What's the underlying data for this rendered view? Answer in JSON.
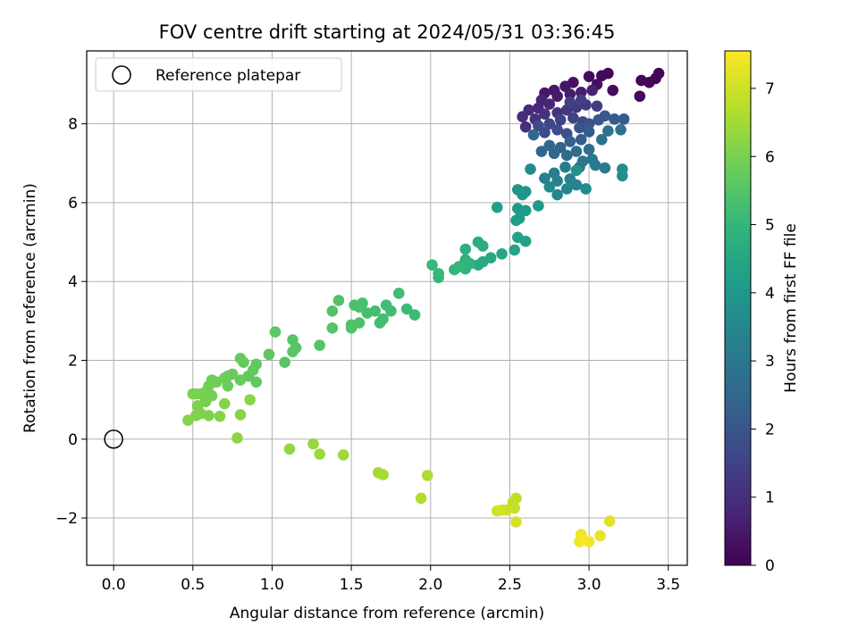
{
  "chart_data": {
    "type": "scatter",
    "title": "FOV centre drift starting at 2024/05/31 03:36:45",
    "xlabel": "Angular distance from reference (arcmin)",
    "ylabel": "Rotation from reference (arcmin)",
    "xlim": [
      -0.17,
      3.62
    ],
    "ylim": [
      -3.2,
      9.85
    ],
    "xticks": [
      0.0,
      0.5,
      1.0,
      1.5,
      2.0,
      2.5,
      3.0,
      3.5
    ],
    "xtick_labels": [
      "0.0",
      "0.5",
      "1.0",
      "1.5",
      "2.0",
      "2.5",
      "3.0",
      "3.5"
    ],
    "yticks": [
      -2,
      0,
      2,
      4,
      6,
      8
    ],
    "ytick_labels": [
      "−2",
      "0",
      "2",
      "4",
      "6",
      "8"
    ],
    "grid": true,
    "legend": {
      "placement": "upper-left",
      "entries": [
        "Reference platepar"
      ]
    },
    "reference_point": {
      "x": 0.0,
      "y": 0.0,
      "label": "Reference platepar"
    },
    "colorbar": {
      "label": "Hours from first FF file",
      "colormap": "viridis",
      "range": [
        0,
        7.55
      ],
      "ticks": [
        0,
        1,
        2,
        3,
        4,
        5,
        6,
        7
      ],
      "tick_labels": [
        "0",
        "1",
        "2",
        "3",
        "4",
        "5",
        "6",
        "7"
      ]
    },
    "points": [
      [
        3.44,
        9.28,
        0.05
      ],
      [
        3.42,
        9.15,
        0.08
      ],
      [
        3.38,
        9.05,
        0.1
      ],
      [
        3.33,
        9.1,
        0.12
      ],
      [
        3.32,
        8.7,
        0.15
      ],
      [
        3.12,
        9.28,
        0.12
      ],
      [
        3.08,
        9.22,
        0.18
      ],
      [
        3.0,
        9.2,
        0.2
      ],
      [
        3.15,
        8.85,
        0.25
      ],
      [
        3.05,
        9.0,
        0.3
      ],
      [
        2.9,
        9.05,
        0.35
      ],
      [
        2.85,
        8.95,
        0.4
      ],
      [
        2.78,
        8.85,
        0.45
      ],
      [
        2.72,
        8.78,
        0.5
      ],
      [
        2.8,
        8.7,
        0.55
      ],
      [
        2.88,
        8.75,
        0.6
      ],
      [
        2.95,
        8.8,
        0.65
      ],
      [
        3.02,
        8.85,
        0.7
      ],
      [
        2.7,
        8.6,
        0.75
      ],
      [
        2.75,
        8.5,
        0.8
      ],
      [
        2.68,
        8.4,
        0.85
      ],
      [
        2.62,
        8.35,
        0.9
      ],
      [
        2.58,
        8.18,
        0.95
      ],
      [
        2.6,
        7.92,
        1.0
      ],
      [
        2.66,
        8.12,
        1.05
      ],
      [
        2.72,
        8.25,
        1.1
      ],
      [
        2.8,
        8.28,
        1.15
      ],
      [
        2.86,
        8.35,
        1.2
      ],
      [
        2.92,
        8.42,
        1.25
      ],
      [
        2.98,
        8.48,
        1.3
      ],
      [
        3.05,
        8.45,
        1.35
      ],
      [
        2.95,
        8.6,
        1.4
      ],
      [
        2.88,
        8.55,
        1.45
      ],
      [
        2.82,
        8.1,
        1.5
      ],
      [
        2.9,
        8.15,
        1.55
      ],
      [
        2.96,
        8.05,
        1.6
      ],
      [
        2.75,
        8.0,
        1.65
      ],
      [
        2.68,
        7.95,
        1.7
      ],
      [
        2.72,
        7.78,
        1.75
      ],
      [
        2.8,
        7.85,
        1.8
      ],
      [
        2.86,
        7.75,
        1.85
      ],
      [
        2.94,
        7.9,
        1.9
      ],
      [
        3.0,
        8.0,
        1.95
      ],
      [
        3.06,
        8.1,
        2.0
      ],
      [
        3.1,
        8.2,
        2.05
      ],
      [
        3.16,
        8.12,
        2.1
      ],
      [
        3.22,
        8.12,
        2.15
      ],
      [
        3.0,
        7.8,
        2.2
      ],
      [
        2.95,
        7.6,
        2.25
      ],
      [
        2.88,
        7.55,
        2.3
      ],
      [
        2.82,
        7.4,
        2.35
      ],
      [
        2.75,
        7.45,
        2.4
      ],
      [
        2.7,
        7.3,
        2.45
      ],
      [
        2.65,
        7.72,
        2.5
      ],
      [
        2.78,
        7.25,
        2.55
      ],
      [
        2.86,
        7.2,
        2.6
      ],
      [
        2.92,
        7.3,
        2.65
      ],
      [
        3.0,
        7.35,
        2.7
      ],
      [
        3.08,
        7.6,
        2.75
      ],
      [
        3.12,
        7.82,
        2.8
      ],
      [
        3.2,
        7.85,
        2.85
      ],
      [
        2.96,
        7.05,
        2.9
      ],
      [
        3.02,
        7.1,
        2.95
      ],
      [
        2.94,
        6.9,
        3.0
      ],
      [
        3.04,
        6.95,
        3.05
      ],
      [
        3.1,
        6.88,
        3.1
      ],
      [
        2.85,
        6.9,
        3.15
      ],
      [
        2.78,
        6.75,
        3.2
      ],
      [
        2.72,
        6.62,
        3.25
      ],
      [
        2.8,
        6.55,
        3.3
      ],
      [
        2.88,
        6.6,
        3.35
      ],
      [
        2.92,
        6.45,
        3.4
      ],
      [
        2.86,
        6.35,
        3.45
      ],
      [
        2.8,
        6.2,
        3.5
      ],
      [
        2.75,
        6.4,
        3.55
      ],
      [
        2.98,
        6.35,
        3.6
      ],
      [
        2.63,
        6.85,
        3.65
      ],
      [
        3.21,
        6.85,
        3.7
      ],
      [
        3.21,
        6.68,
        3.75
      ],
      [
        2.92,
        6.82,
        3.8
      ],
      [
        2.6,
        6.28,
        3.85
      ],
      [
        2.55,
        6.33,
        3.9
      ],
      [
        2.58,
        6.2,
        3.95
      ],
      [
        2.68,
        5.92,
        4.0
      ],
      [
        2.55,
        5.85,
        4.05
      ],
      [
        2.6,
        5.8,
        4.1
      ],
      [
        2.56,
        5.6,
        4.15
      ],
      [
        2.54,
        5.55,
        4.2
      ],
      [
        2.42,
        5.88,
        4.25
      ],
      [
        2.55,
        5.12,
        4.3
      ],
      [
        2.6,
        5.02,
        4.35
      ],
      [
        2.53,
        4.8,
        4.4
      ],
      [
        2.45,
        4.7,
        4.45
      ],
      [
        2.38,
        4.6,
        4.5
      ],
      [
        2.33,
        4.5,
        4.55
      ],
      [
        2.3,
        4.42,
        4.6
      ],
      [
        2.3,
        5.0,
        4.65
      ],
      [
        2.33,
        4.9,
        4.7
      ],
      [
        2.22,
        4.82,
        4.75
      ],
      [
        2.22,
        4.55,
        4.8
      ],
      [
        2.25,
        4.45,
        4.85
      ],
      [
        2.22,
        4.32,
        4.9
      ],
      [
        2.18,
        4.38,
        4.95
      ],
      [
        2.15,
        4.3,
        5.0
      ],
      [
        2.05,
        4.2,
        5.02
      ],
      [
        2.05,
        4.1,
        5.05
      ],
      [
        2.01,
        4.42,
        5.08
      ],
      [
        1.9,
        3.15,
        5.12
      ],
      [
        1.85,
        3.3,
        5.15
      ],
      [
        1.8,
        3.7,
        5.18
      ],
      [
        1.75,
        3.25,
        5.2
      ],
      [
        1.72,
        3.4,
        5.22
      ],
      [
        1.7,
        3.05,
        5.24
      ],
      [
        1.68,
        2.95,
        5.26
      ],
      [
        1.65,
        3.25,
        5.28
      ],
      [
        1.6,
        3.2,
        5.3
      ],
      [
        1.57,
        3.45,
        5.32
      ],
      [
        1.55,
        3.35,
        5.34
      ],
      [
        1.52,
        3.4,
        5.36
      ],
      [
        1.55,
        2.95,
        5.38
      ],
      [
        1.5,
        2.9,
        5.4
      ],
      [
        1.5,
        2.82,
        5.42
      ],
      [
        1.42,
        3.52,
        5.44
      ],
      [
        1.38,
        3.25,
        5.46
      ],
      [
        1.38,
        2.82,
        5.48
      ],
      [
        1.3,
        2.38,
        5.5
      ],
      [
        1.15,
        2.32,
        5.52
      ],
      [
        1.13,
        2.52,
        5.54
      ],
      [
        1.13,
        2.22,
        5.56
      ],
      [
        1.08,
        1.95,
        5.58
      ],
      [
        1.02,
        2.72,
        5.6
      ],
      [
        0.98,
        2.15,
        5.62
      ],
      [
        0.9,
        1.9,
        5.64
      ],
      [
        0.9,
        1.45,
        5.66
      ],
      [
        0.88,
        1.75,
        5.68
      ],
      [
        0.85,
        1.6,
        5.7
      ],
      [
        0.82,
        1.95,
        5.72
      ],
      [
        0.8,
        2.05,
        5.74
      ],
      [
        0.8,
        1.5,
        5.76
      ],
      [
        0.75,
        1.65,
        5.78
      ],
      [
        0.72,
        1.6,
        5.8
      ],
      [
        0.72,
        1.35,
        5.82
      ],
      [
        0.7,
        1.55,
        5.84
      ],
      [
        0.65,
        1.45,
        5.86
      ],
      [
        0.62,
        1.5,
        5.88
      ],
      [
        0.6,
        1.35,
        5.9
      ],
      [
        0.58,
        1.2,
        5.92
      ],
      [
        0.62,
        1.1,
        5.94
      ],
      [
        0.58,
        0.95,
        5.96
      ],
      [
        0.55,
        1.15,
        5.98
      ],
      [
        0.52,
        1.15,
        6.0
      ],
      [
        0.5,
        1.15,
        6.02
      ],
      [
        0.53,
        0.85,
        6.04
      ],
      [
        0.55,
        0.65,
        6.06
      ],
      [
        0.6,
        0.6,
        6.08
      ],
      [
        0.52,
        0.6,
        6.1
      ],
      [
        0.47,
        0.48,
        6.12
      ],
      [
        0.67,
        0.58,
        6.14
      ],
      [
        0.7,
        0.9,
        6.16
      ],
      [
        0.8,
        0.62,
        6.18
      ],
      [
        0.86,
        1.0,
        6.2
      ],
      [
        0.78,
        0.03,
        6.22
      ],
      [
        1.11,
        -0.25,
        6.3
      ],
      [
        1.26,
        -0.12,
        6.35
      ],
      [
        1.3,
        -0.38,
        6.4
      ],
      [
        1.45,
        -0.4,
        6.45
      ],
      [
        1.67,
        -0.85,
        6.5
      ],
      [
        1.7,
        -0.9,
        6.55
      ],
      [
        1.98,
        -0.92,
        6.6
      ],
      [
        1.94,
        -1.5,
        6.65
      ],
      [
        2.54,
        -1.5,
        6.8
      ],
      [
        2.52,
        -1.6,
        6.85
      ],
      [
        2.53,
        -1.75,
        6.9
      ],
      [
        2.48,
        -1.8,
        6.95
      ],
      [
        2.45,
        -1.8,
        7.0
      ],
      [
        2.42,
        -1.82,
        7.05
      ],
      [
        2.54,
        -2.1,
        7.1
      ],
      [
        3.13,
        -2.08,
        7.2
      ],
      [
        3.07,
        -2.45,
        7.3
      ],
      [
        2.95,
        -2.42,
        7.35
      ],
      [
        2.94,
        -2.6,
        7.4
      ],
      [
        3.0,
        -2.6,
        7.45
      ],
      [
        2.96,
        -2.55,
        7.5
      ]
    ]
  }
}
